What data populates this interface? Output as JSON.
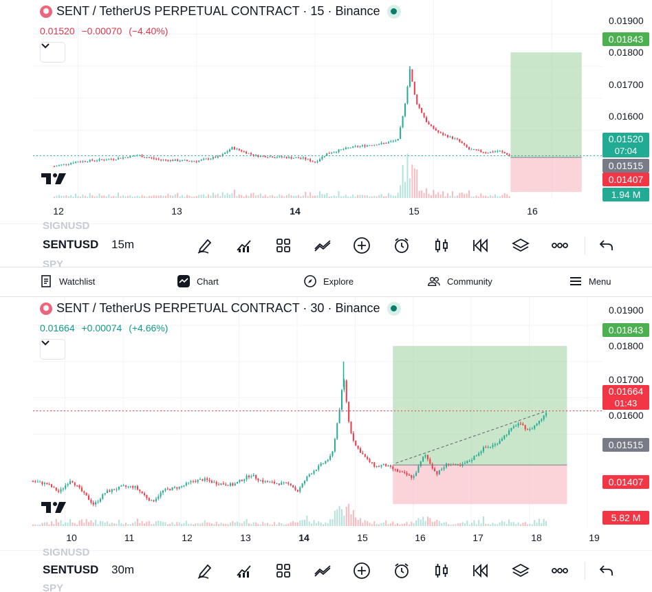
{
  "colors": {
    "up": "#22ab94",
    "down": "#f23645",
    "long_zone": "#a5d6a7",
    "short_zone": "#f7b8bf",
    "tag_green": "#4caf50",
    "tag_red": "#f23645",
    "tag_gray": "#787b86",
    "tag_teal": "#22ab94"
  },
  "top_chart": {
    "header": {
      "title": "SENT / TetherUS PERPETUAL CONTRACT · 15 · Binance",
      "logo_icon": "sent-logo-icon"
    },
    "quote": {
      "price": "0.01520",
      "change": "−0.00070",
      "change_pct": "(−4.40%)"
    },
    "price_ticks": [
      "0.01900",
      "0.01800",
      "0.01700",
      "0.01600"
    ],
    "price_tags": {
      "target": "0.01843",
      "current": "0.01520",
      "countdown": "07:04",
      "entry": "0.01515",
      "stop": "0.01407",
      "volume": "1.94 M"
    },
    "time_ticks": [
      "12",
      "13",
      "14",
      "15",
      "16"
    ],
    "symbol": "SENTUSD",
    "interval": "15m",
    "ghost_above": "SIGNUSD",
    "ghost_below": "SPY"
  },
  "bottom_chart": {
    "header": {
      "title": "SENT / TetherUS PERPETUAL CONTRACT · 30 · Binance",
      "logo_icon": "sent-logo-icon"
    },
    "quote": {
      "price": "0.01664",
      "change": "+0.00074",
      "change_pct": "(+4.66%)"
    },
    "price_ticks": [
      "0.01900",
      "0.01800",
      "0.01700",
      "0.01600"
    ],
    "price_tags": {
      "target": "0.01843",
      "current": "0.01664",
      "countdown": "01:43",
      "entry": "0.01515",
      "stop": "0.01407",
      "volume": "5.82 M"
    },
    "time_ticks": [
      "10",
      "11",
      "12",
      "13",
      "14",
      "15",
      "16",
      "17",
      "18",
      "19"
    ],
    "symbol": "SENTUSD",
    "interval": "30m",
    "ghost_above": "SIGNUSD",
    "ghost_below": "SPY"
  },
  "toolbar_icons": [
    "drawing-pen-icon",
    "indicators-icon",
    "templates-grid-icon",
    "compare-icon",
    "add-icon",
    "alert-clock-icon",
    "candles-icon",
    "replay-icon",
    "layers-icon",
    "more-icon",
    "undo-icon"
  ],
  "nav": {
    "watchlist": "Watchlist",
    "chart": "Chart",
    "explore": "Explore",
    "community": "Community",
    "menu": "Menu"
  },
  "chart_data": [
    {
      "type": "candlestick",
      "title": "SENT / TetherUS PERPETUAL CONTRACT · 15 · Binance",
      "x_ticks": [
        "12",
        "13",
        "14",
        "15",
        "16"
      ],
      "ylim": [
        0.0136,
        0.0194
      ],
      "y_ticks": [
        0.019,
        0.018,
        0.017,
        0.016
      ],
      "price_path": [
        [
          11.8,
          0.01487
        ],
        [
          12.0,
          0.01502
        ],
        [
          12.3,
          0.0151
        ],
        [
          12.5,
          0.01521
        ],
        [
          12.7,
          0.01507
        ],
        [
          13.0,
          0.01503
        ],
        [
          13.2,
          0.01518
        ],
        [
          13.3,
          0.01545
        ],
        [
          13.5,
          0.0152
        ],
        [
          13.7,
          0.01516
        ],
        [
          13.9,
          0.01512
        ],
        [
          14.0,
          0.015
        ],
        [
          14.1,
          0.01527
        ],
        [
          14.3,
          0.01546
        ],
        [
          14.45,
          0.01553
        ],
        [
          14.6,
          0.0156
        ],
        [
          14.7,
          0.0157
        ],
        [
          14.75,
          0.0166
        ],
        [
          14.8,
          0.0179
        ],
        [
          14.85,
          0.0169
        ],
        [
          14.95,
          0.0162
        ],
        [
          15.05,
          0.0159
        ],
        [
          15.2,
          0.0157
        ],
        [
          15.3,
          0.0154
        ],
        [
          15.45,
          0.0153
        ],
        [
          15.55,
          0.01535
        ],
        [
          15.65,
          0.0152
        ]
      ],
      "position": {
        "side": "long",
        "target": 0.01843,
        "entry": 0.01515,
        "stop": 0.01407,
        "x_from": 15.65,
        "x_to": 16.25
      },
      "last_price": 0.0152,
      "volume_last": "1.94 M"
    },
    {
      "type": "candlestick",
      "title": "SENT / TetherUS PERPETUAL CONTRACT · 30 · Binance",
      "x_ticks": [
        "10",
        "11",
        "12",
        "13",
        "14",
        "15",
        "16",
        "17",
        "18",
        "19"
      ],
      "ylim": [
        0.0136,
        0.0194
      ],
      "y_ticks": [
        0.019,
        0.018,
        0.017,
        0.016
      ],
      "price_path": [
        [
          9.45,
          0.0147
        ],
        [
          9.7,
          0.01462
        ],
        [
          9.9,
          0.0144
        ],
        [
          10.1,
          0.01475
        ],
        [
          10.3,
          0.0144
        ],
        [
          10.5,
          0.01405
        ],
        [
          10.7,
          0.0144
        ],
        [
          11.0,
          0.01455
        ],
        [
          11.2,
          0.01455
        ],
        [
          11.5,
          0.01413
        ],
        [
          11.7,
          0.01445
        ],
        [
          12.0,
          0.01455
        ],
        [
          12.2,
          0.0147
        ],
        [
          12.4,
          0.01475
        ],
        [
          12.6,
          0.01465
        ],
        [
          12.9,
          0.0146
        ],
        [
          13.2,
          0.01488
        ],
        [
          13.4,
          0.0147
        ],
        [
          13.6,
          0.01465
        ],
        [
          13.9,
          0.01462
        ],
        [
          14.0,
          0.0144
        ],
        [
          14.2,
          0.01488
        ],
        [
          14.45,
          0.0152
        ],
        [
          14.6,
          0.0154
        ],
        [
          14.75,
          0.0169
        ],
        [
          14.8,
          0.0176
        ],
        [
          14.9,
          0.0162
        ],
        [
          15.0,
          0.0157
        ],
        [
          15.2,
          0.0153
        ],
        [
          15.35,
          0.0151
        ],
        [
          15.5,
          0.01515
        ],
        [
          15.7,
          0.015
        ],
        [
          16.0,
          0.0148
        ],
        [
          16.2,
          0.01545
        ],
        [
          16.4,
          0.0149
        ],
        [
          16.6,
          0.0152
        ],
        [
          16.8,
          0.0151
        ],
        [
          17.0,
          0.0153
        ],
        [
          17.2,
          0.0156
        ],
        [
          17.4,
          0.0157
        ],
        [
          17.6,
          0.016
        ],
        [
          17.8,
          0.0163
        ],
        [
          18.0,
          0.0161
        ],
        [
          18.2,
          0.0164
        ],
        [
          18.3,
          0.01664
        ]
      ],
      "position": {
        "side": "long",
        "target": 0.01843,
        "entry": 0.01515,
        "stop": 0.01407,
        "x_from": 15.65,
        "x_to": 18.65
      },
      "last_price": 0.01664,
      "volume_last": "5.82 M"
    }
  ]
}
